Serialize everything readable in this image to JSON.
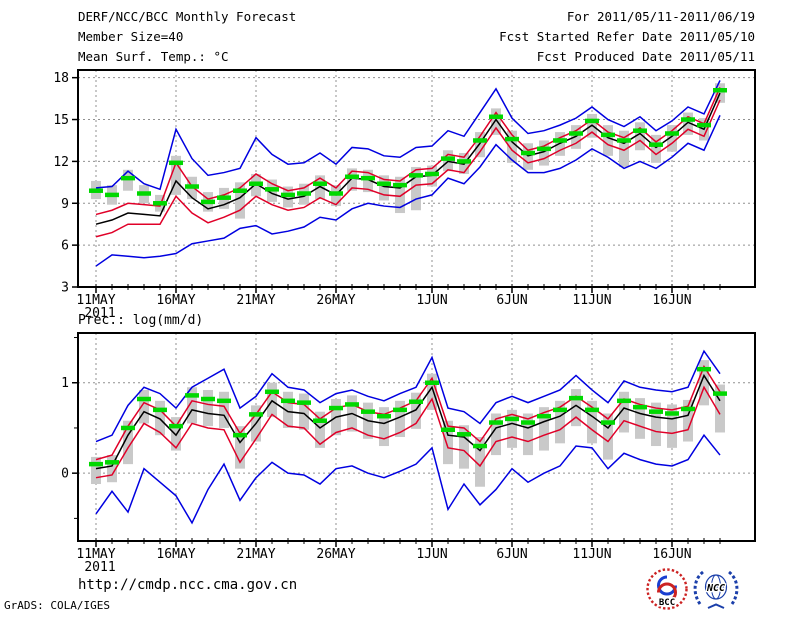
{
  "header": {
    "title": "DERF/NCC/BCC Monthly Forecast",
    "member_size": "Member Size=40",
    "for_range": "For 2011/05/11-2011/06/19",
    "fcst_refer": "Fcst Started Refer Date 2011/05/10",
    "fcst_produced": "Fcst Produced Date 2011/05/11"
  },
  "footer": {
    "url": "http://cmdp.ncc.cma.gov.cn",
    "grads_credit": "GrADS: COLA/IGES",
    "logos": [
      {
        "name": "BCC",
        "label": "BCC"
      },
      {
        "name": "NCC",
        "label": "NCC"
      }
    ]
  },
  "colors": {
    "blue": "#0000e0",
    "red": "#e00028",
    "green": "#00d800",
    "black": "#000000",
    "gray_bar": "#c9c9c9",
    "grid": "#909090",
    "frame": "#000000",
    "logo_blue": "#1b3faa",
    "logo_red": "#cc2222",
    "logo_navy": "#0a1a66"
  },
  "chart_data": [
    {
      "id": "temperature",
      "type": "line",
      "title": "Mean Surf. Temp.: °C",
      "n_points": 40,
      "ylim": [
        3,
        18.55
      ],
      "yticks": [
        3,
        6,
        9,
        12,
        15,
        18
      ],
      "yticks_minor": [],
      "grid": true,
      "legend_position": "none",
      "x_ticks": {
        "labels": [
          "11MAY",
          "16MAY",
          "21MAY",
          "26MAY",
          "1JUN",
          "6JUN",
          "11JUN",
          "16JUN"
        ],
        "days": [
          1,
          6,
          11,
          16,
          22,
          27,
          32,
          37
        ],
        "year": "2011"
      },
      "series": [
        {
          "name": "member-max",
          "color": "blue",
          "style": "line",
          "values": [
            10.1,
            10.2,
            11.3,
            10.4,
            10.0,
            14.3,
            12.2,
            11.0,
            11.2,
            11.5,
            13.7,
            12.5,
            11.8,
            11.9,
            12.6,
            11.8,
            13.0,
            12.9,
            12.4,
            12.3,
            13.0,
            13.1,
            14.2,
            13.8,
            15.5,
            17.2,
            15.1,
            14.0,
            14.2,
            14.6,
            15.1,
            15.9,
            15.0,
            14.5,
            15.2,
            14.2,
            14.9,
            15.9,
            15.4,
            17.8
          ]
        },
        {
          "name": "upper-quartile",
          "color": "red",
          "style": "line",
          "values": [
            8.2,
            8.5,
            9.0,
            8.9,
            8.8,
            11.9,
            10.2,
            9.3,
            9.6,
            10.1,
            11.1,
            10.4,
            9.9,
            10.1,
            10.8,
            10.1,
            11.3,
            11.2,
            10.7,
            10.6,
            11.4,
            11.5,
            12.5,
            12.3,
            13.8,
            15.5,
            13.9,
            12.8,
            13.1,
            13.7,
            14.2,
            15.0,
            14.1,
            13.7,
            14.4,
            13.4,
            14.2,
            15.2,
            14.7,
            17.3
          ]
        },
        {
          "name": "median",
          "color": "black",
          "style": "line",
          "values": [
            7.5,
            7.8,
            8.3,
            8.2,
            8.1,
            10.6,
            9.4,
            8.6,
            8.9,
            9.4,
            10.4,
            9.7,
            9.3,
            9.5,
            10.2,
            9.6,
            10.8,
            10.7,
            10.2,
            10.1,
            10.9,
            11.0,
            12.0,
            11.8,
            13.3,
            15.0,
            13.4,
            12.4,
            12.7,
            13.3,
            13.8,
            14.6,
            13.7,
            13.3,
            14.0,
            13.0,
            13.8,
            14.8,
            14.3,
            16.9
          ]
        },
        {
          "name": "lower-quartile",
          "color": "red",
          "style": "line",
          "values": [
            6.6,
            6.9,
            7.5,
            7.5,
            7.5,
            9.5,
            8.3,
            7.6,
            8.0,
            8.5,
            9.5,
            8.9,
            8.5,
            8.7,
            9.4,
            8.9,
            10.1,
            10.0,
            9.6,
            9.5,
            10.3,
            10.4,
            11.4,
            11.2,
            12.7,
            14.4,
            12.8,
            11.9,
            12.2,
            12.8,
            13.3,
            14.1,
            13.2,
            12.8,
            13.5,
            12.5,
            13.3,
            14.3,
            13.8,
            16.4
          ]
        },
        {
          "name": "member-min",
          "color": "blue",
          "style": "line",
          "values": [
            4.5,
            5.3,
            5.2,
            5.1,
            5.2,
            5.4,
            6.1,
            6.3,
            6.5,
            7.2,
            7.4,
            6.8,
            7.0,
            7.3,
            8.0,
            7.8,
            8.6,
            9.0,
            8.8,
            8.7,
            9.3,
            9.6,
            10.8,
            10.4,
            11.6,
            13.2,
            12.1,
            11.2,
            11.2,
            11.5,
            12.1,
            12.9,
            12.3,
            11.5,
            12.0,
            11.5,
            12.3,
            13.3,
            12.8,
            15.3
          ]
        },
        {
          "name": "ensemble-mean",
          "color": "green",
          "style": "dash-marker",
          "values": [
            9.9,
            9.6,
            10.8,
            9.7,
            9.0,
            11.9,
            10.2,
            9.1,
            9.4,
            9.9,
            10.4,
            10.0,
            9.6,
            9.7,
            10.4,
            9.7,
            10.9,
            10.8,
            10.4,
            10.3,
            11.0,
            11.1,
            12.2,
            12.0,
            13.5,
            15.2,
            13.6,
            12.6,
            12.9,
            13.5,
            14.0,
            14.9,
            13.9,
            13.5,
            14.2,
            13.2,
            14.0,
            15.0,
            14.6,
            17.1
          ]
        }
      ],
      "bars": {
        "name": "ensemble-spread",
        "color": "gray_bar",
        "top": [
          10.6,
          10.3,
          11.4,
          10.3,
          9.6,
          12.4,
          10.9,
          9.8,
          10.1,
          10.5,
          11.1,
          10.7,
          10.2,
          10.4,
          11.0,
          10.3,
          11.5,
          11.4,
          11.0,
          10.9,
          11.6,
          11.7,
          12.8,
          12.6,
          14.1,
          15.8,
          14.2,
          13.3,
          13.5,
          14.1,
          14.6,
          15.4,
          14.6,
          14.2,
          14.8,
          13.9,
          14.6,
          15.5,
          15.1,
          17.6
        ],
        "bottom": [
          9.3,
          8.9,
          9.9,
          9.0,
          8.4,
          9.6,
          9.3,
          8.4,
          8.6,
          7.9,
          9.5,
          9.1,
          8.7,
          8.9,
          9.3,
          8.8,
          9.9,
          9.8,
          9.2,
          8.3,
          8.5,
          10.2,
          11.3,
          11.1,
          12.3,
          13.9,
          11.9,
          11.4,
          11.7,
          12.4,
          12.9,
          13.7,
          12.4,
          11.6,
          12.8,
          11.9,
          12.7,
          13.9,
          13.5,
          16.2
        ]
      }
    },
    {
      "id": "precipitation",
      "type": "line",
      "title": "Prec.: log(mm/d)",
      "n_points": 40,
      "ylim": [
        -0.75,
        1.55
      ],
      "yticks": [
        0,
        1
      ],
      "yticks_minor": [
        -0.5,
        0.5,
        1.5
      ],
      "grid": true,
      "legend_position": "none",
      "x_ticks": {
        "labels": [
          "11MAY",
          "16MAY",
          "21MAY",
          "26MAY",
          "1JUN",
          "6JUN",
          "11JUN",
          "16JUN"
        ],
        "days": [
          1,
          6,
          11,
          16,
          22,
          27,
          32,
          37
        ],
        "year": "2011"
      },
      "series": [
        {
          "name": "member-max",
          "color": "blue",
          "style": "line",
          "values": [
            0.35,
            0.42,
            0.75,
            0.95,
            0.88,
            0.72,
            0.95,
            1.05,
            1.15,
            0.72,
            0.85,
            1.1,
            0.95,
            0.92,
            0.78,
            0.88,
            0.92,
            0.85,
            0.8,
            0.88,
            0.95,
            1.28,
            0.72,
            0.68,
            0.55,
            0.78,
            0.85,
            0.78,
            0.85,
            0.92,
            1.08,
            0.92,
            0.78,
            1.02,
            0.95,
            0.92,
            0.9,
            0.95,
            1.35,
            1.1
          ]
        },
        {
          "name": "upper-quartile",
          "color": "red",
          "style": "line",
          "values": [
            0.15,
            0.2,
            0.52,
            0.78,
            0.7,
            0.52,
            0.8,
            0.76,
            0.74,
            0.44,
            0.65,
            0.9,
            0.78,
            0.76,
            0.6,
            0.72,
            0.76,
            0.68,
            0.65,
            0.72,
            0.8,
            1.05,
            0.52,
            0.5,
            0.35,
            0.6,
            0.65,
            0.6,
            0.67,
            0.73,
            0.85,
            0.73,
            0.6,
            0.82,
            0.76,
            0.72,
            0.7,
            0.74,
            1.18,
            0.9
          ]
        },
        {
          "name": "median",
          "color": "black",
          "style": "line",
          "values": [
            0.05,
            0.08,
            0.42,
            0.68,
            0.6,
            0.42,
            0.7,
            0.66,
            0.64,
            0.34,
            0.55,
            0.8,
            0.68,
            0.66,
            0.5,
            0.62,
            0.66,
            0.58,
            0.55,
            0.62,
            0.7,
            0.95,
            0.42,
            0.4,
            0.25,
            0.5,
            0.55,
            0.5,
            0.57,
            0.63,
            0.75,
            0.63,
            0.5,
            0.72,
            0.66,
            0.62,
            0.6,
            0.64,
            1.08,
            0.8
          ]
        },
        {
          "name": "lower-quartile",
          "color": "red",
          "style": "line",
          "values": [
            -0.05,
            -0.02,
            0.28,
            0.55,
            0.45,
            0.28,
            0.55,
            0.5,
            0.48,
            0.12,
            0.38,
            0.65,
            0.52,
            0.5,
            0.32,
            0.45,
            0.5,
            0.42,
            0.38,
            0.45,
            0.55,
            0.82,
            0.28,
            0.25,
            0.08,
            0.35,
            0.4,
            0.35,
            0.42,
            0.48,
            0.62,
            0.48,
            0.35,
            0.58,
            0.52,
            0.46,
            0.44,
            0.48,
            0.95,
            0.65
          ]
        },
        {
          "name": "member-min",
          "color": "blue",
          "style": "line",
          "values": [
            -0.45,
            -0.2,
            -0.43,
            0.05,
            -0.1,
            -0.25,
            -0.55,
            -0.18,
            0.1,
            -0.3,
            -0.05,
            0.12,
            0.0,
            -0.02,
            -0.12,
            0.05,
            0.08,
            0.0,
            -0.05,
            0.02,
            0.1,
            0.28,
            -0.4,
            -0.12,
            -0.35,
            -0.18,
            0.05,
            -0.1,
            0.0,
            0.08,
            0.3,
            0.28,
            0.05,
            0.22,
            0.15,
            0.1,
            0.08,
            0.15,
            0.42,
            0.2
          ]
        },
        {
          "name": "ensemble-mean",
          "color": "green",
          "style": "dash-marker",
          "values": [
            0.1,
            0.12,
            0.5,
            0.82,
            0.7,
            0.52,
            0.86,
            0.82,
            0.8,
            0.42,
            0.65,
            0.9,
            0.8,
            0.78,
            0.58,
            0.72,
            0.76,
            0.68,
            0.63,
            0.7,
            0.79,
            1.0,
            0.48,
            0.43,
            0.3,
            0.56,
            0.6,
            0.56,
            0.63,
            0.7,
            0.83,
            0.7,
            0.56,
            0.8,
            0.73,
            0.68,
            0.66,
            0.71,
            1.15,
            0.88
          ]
        }
      ],
      "bars": {
        "name": "ensemble-spread",
        "color": "gray_bar",
        "top": [
          0.18,
          0.2,
          0.58,
          0.92,
          0.8,
          0.62,
          0.95,
          0.92,
          0.9,
          0.52,
          0.75,
          1.0,
          0.9,
          0.88,
          0.68,
          0.82,
          0.86,
          0.78,
          0.73,
          0.8,
          0.89,
          1.1,
          0.58,
          0.53,
          0.4,
          0.66,
          0.7,
          0.66,
          0.73,
          0.8,
          0.93,
          0.8,
          0.66,
          0.9,
          0.83,
          0.78,
          0.76,
          0.81,
          1.25,
          0.98
        ],
        "bottom": [
          -0.12,
          -0.1,
          0.1,
          0.55,
          0.42,
          0.25,
          0.55,
          0.52,
          0.5,
          0.05,
          0.35,
          0.62,
          0.5,
          0.48,
          0.28,
          0.42,
          0.46,
          0.38,
          0.3,
          0.4,
          0.49,
          0.7,
          0.1,
          0.05,
          -0.15,
          0.2,
          0.28,
          0.2,
          0.25,
          0.33,
          0.52,
          0.33,
          0.15,
          0.45,
          0.38,
          0.3,
          0.28,
          0.35,
          0.75,
          0.45
        ]
      }
    }
  ]
}
